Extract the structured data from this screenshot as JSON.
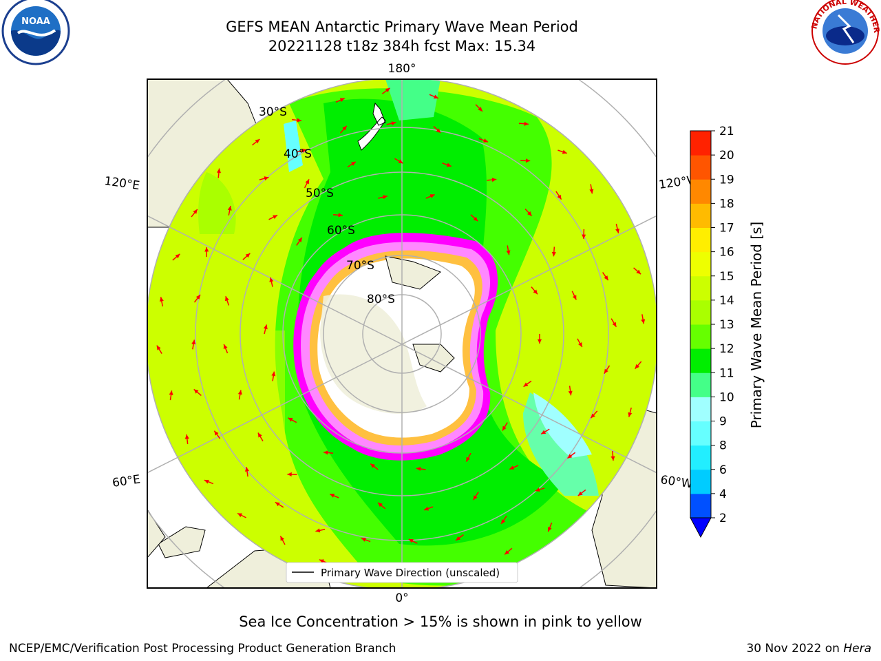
{
  "header": {
    "title_line1": "GEFS MEAN Antarctic Primary Wave Mean Period",
    "title_line2": "20221128 t18z 384h fcst   Max: 15.34"
  },
  "logos": {
    "left": "noaa-logo",
    "left_text": "NOAA",
    "right": "nws-logo",
    "right_text": "NATIONAL WEATHER SERVICE"
  },
  "map": {
    "projection": "south-polar-stereographic",
    "lon_labels": {
      "top": "180°",
      "bottom": "0°",
      "left_upper": "120°E",
      "left_lower": "60°E",
      "right_upper": "120°W",
      "right_lower": "60°W"
    },
    "lat_labels": [
      "30°S",
      "40°S",
      "50°S",
      "60°S",
      "70°S",
      "80°S"
    ],
    "legend_label": "Primary Wave Direction (unscaled)",
    "arrow_color": "#ff0000",
    "land_color": "#efefdb",
    "ice_colors": [
      "#ff00ff",
      "#ff88ff",
      "#ffc0cb",
      "#ffd700",
      "#ffffff"
    ]
  },
  "colorbar": {
    "label": "Primary Wave Mean Period [s]",
    "ticks": [
      "2",
      "4",
      "6",
      "8",
      "9",
      "10",
      "11",
      "12",
      "13",
      "14",
      "15",
      "16",
      "17",
      "18",
      "19",
      "20",
      "21"
    ],
    "colors": [
      "#0050ff",
      "#00ccff",
      "#22eeff",
      "#66ffff",
      "#a0ffff",
      "#44ff88",
      "#00ee00",
      "#66ff00",
      "#aaff00",
      "#ccff00",
      "#eeff00",
      "#ffee00",
      "#ffbb00",
      "#ff8800",
      "#ff5500",
      "#ff2200"
    ],
    "extend_color": "#0000ff"
  },
  "subtitle": "Sea Ice Concentration > 15% is shown in pink to yellow",
  "footer": {
    "left": "NCEP/EMC/Verification Post Processing Product Generation Branch",
    "right_date": "30 Nov 2022 on",
    "right_host": "Hera"
  }
}
